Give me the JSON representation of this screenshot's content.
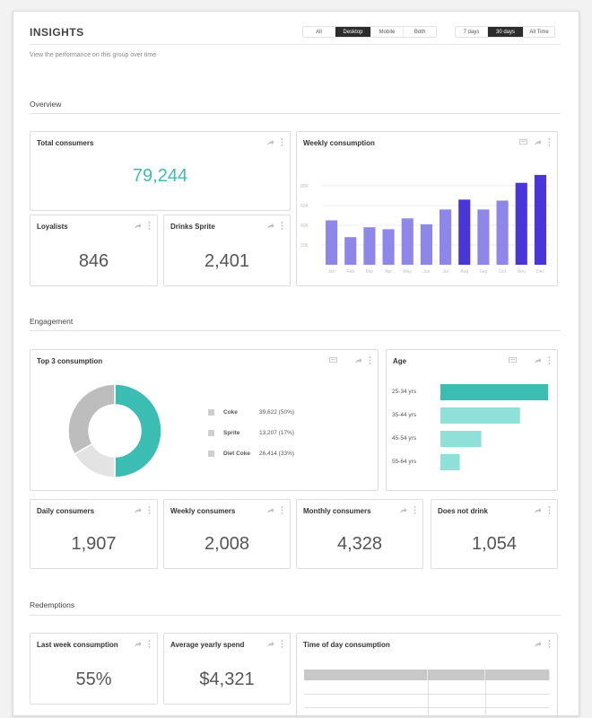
{
  "header": {
    "title": "INSIGHTS",
    "subtitle": "View the performance on this group over time",
    "device_filter": [
      "All",
      "Desktop",
      "Mobile",
      "Both"
    ],
    "device_selected": "Desktop",
    "range_filter": [
      "7 days",
      "30 days",
      "All Time"
    ],
    "range_selected": "30 days"
  },
  "sections": {
    "overview": "Overview",
    "engagement": "Engagement",
    "redemptions": "Redemptions"
  },
  "overview": {
    "total_consumers": {
      "label": "Total consumers",
      "value": "79,244"
    },
    "loyalists": {
      "label": "Loyalists",
      "value": "846"
    },
    "drinks_sprite": {
      "label": "Drinks Sprite",
      "value": "2,401"
    },
    "weekly_consumption": {
      "label": "Weekly consumption"
    }
  },
  "engagement": {
    "top3": {
      "label": "Top 3 consumption",
      "items": [
        {
          "name": "Coke",
          "value": "39,622 (50%)"
        },
        {
          "name": "Sprite",
          "value": "13,207 (17%)"
        },
        {
          "name": "Diet Coke",
          "value": "26,414 (33%)"
        }
      ]
    },
    "age": {
      "label": "Age"
    },
    "daily": {
      "label": "Daily consumers",
      "value": "1,907"
    },
    "weekly": {
      "label": "Weekly consumers",
      "value": "2,008"
    },
    "monthly": {
      "label": "Monthly consumers",
      "value": "4,328"
    },
    "not_drink": {
      "label": "Does not drink",
      "value": "1,054"
    }
  },
  "redemptions": {
    "last_week": {
      "label": "Last week consumption",
      "value": "55%"
    },
    "avg_spend": {
      "label": "Average yearly spend",
      "value": "$4,321"
    },
    "time_of_day": {
      "label": "Time of day consumption"
    }
  },
  "colors": {
    "accent": "#3bbdb3",
    "bar_light": "#8e86e8",
    "bar_dark": "#4a35d8",
    "donut_gray": "#bdbdbd",
    "donut_light": "#e3e3e3"
  },
  "chart_data": [
    {
      "type": "bar",
      "title": "Weekly consumption",
      "categories": [
        "Jan",
        "Feb",
        "Mar",
        "Apr",
        "May",
        "Jun",
        "Jul",
        "Aug",
        "Sep",
        "Oct",
        "Nov",
        "Dec"
      ],
      "values": [
        45,
        28,
        38,
        36,
        47,
        41,
        56,
        66,
        56,
        65,
        83,
        91
      ],
      "ylim": [
        0,
        100
      ],
      "yticks": [
        "20K",
        "40K",
        "60K",
        "80K"
      ],
      "grid": true,
      "highlighted": [
        "Aug",
        "Nov",
        "Dec"
      ]
    },
    {
      "type": "pie",
      "title": "Top 3 consumption",
      "categories": [
        "Coke",
        "Sprite",
        "Diet Coke"
      ],
      "values": [
        39622,
        13207,
        26414
      ],
      "percent": [
        50,
        17,
        33
      ],
      "donut": true
    },
    {
      "type": "bar",
      "orientation": "horizontal",
      "title": "Age",
      "categories": [
        "25-34 yrs",
        "35-44 yrs",
        "45-54 yrs",
        "55-64 yrs"
      ],
      "values": [
        100,
        74,
        38,
        18
      ],
      "xlim": [
        0,
        100
      ]
    }
  ]
}
